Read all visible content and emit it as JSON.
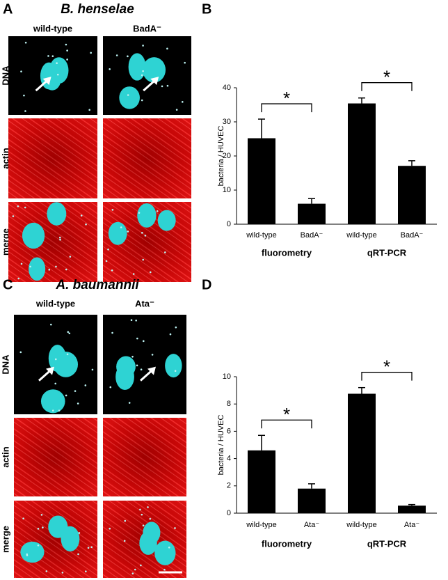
{
  "panels": [
    {
      "letter": "A",
      "title": "B. henselae",
      "columns": [
        "wild-type",
        "BadA⁻"
      ],
      "rows": [
        "DNA",
        "actin",
        "merge"
      ]
    },
    {
      "letter": "C",
      "title": "A. baumannii",
      "columns": [
        "wild-type",
        "Ata⁻"
      ],
      "rows": [
        "DNA",
        "actin",
        "merge"
      ]
    }
  ],
  "chart_data": [
    {
      "type": "bar",
      "letter": "B",
      "ylabel": "bacteria / HUVEC",
      "categories": [
        "wild-type",
        "BadA⁻",
        "wild-type",
        "BadA⁻"
      ],
      "values": [
        25.2,
        6,
        35.4,
        17.1
      ],
      "errors": [
        5.6,
        1.5,
        1.6,
        1.5
      ],
      "groups": [
        "fluorometry",
        "qRT-PCR"
      ],
      "annotations": [
        "*",
        "*"
      ],
      "color": "#000000",
      "ylim": [
        0,
        40
      ],
      "yticks": [
        0,
        10,
        20,
        30,
        40
      ]
    },
    {
      "type": "bar",
      "letter": "D",
      "ylabel": "bacteria / HUVEC",
      "categories": [
        "wild-type",
        "Ata⁻",
        "wild-type",
        "Ata⁻"
      ],
      "values": [
        4.6,
        1.8,
        8.75,
        0.55
      ],
      "errors": [
        1.1,
        0.35,
        0.45,
        0.08
      ],
      "groups": [
        "fluorometry",
        "qRT-PCR"
      ],
      "annotations": [
        "*",
        "*"
      ],
      "color": "#000000",
      "ylim": [
        0,
        10
      ],
      "yticks": [
        0,
        2,
        4,
        6,
        8,
        10
      ]
    }
  ]
}
